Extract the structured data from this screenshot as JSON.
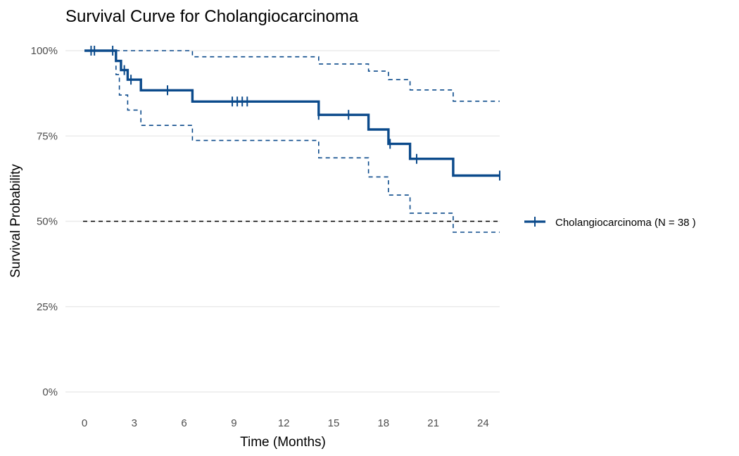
{
  "chart_data": {
    "type": "line",
    "title": "Survival Curve for Cholangiocarcinoma",
    "xlabel": "Time (Months)",
    "ylabel": "Survival Probability",
    "xlim": [
      0,
      25
    ],
    "ylim": [
      0,
      1
    ],
    "x_ticks": [
      0,
      3,
      6,
      9,
      12,
      15,
      18,
      21,
      24
    ],
    "x_tick_labels": [
      "0",
      "3",
      "6",
      "9",
      "12",
      "15",
      "18",
      "21",
      "24"
    ],
    "y_ticks": [
      0,
      0.25,
      0.5,
      0.75,
      1
    ],
    "y_tick_labels": [
      "0%",
      "25%",
      "50%",
      "75%",
      "100%"
    ],
    "grid": "horizontal",
    "legend_position": "right",
    "reference_line": {
      "y": 0.5,
      "style": "dashed",
      "color": "#000000"
    },
    "series": [
      {
        "name": "Cholangiocarcinoma (N = 38 )",
        "color": "#0b4a8b",
        "step_curve": [
          [
            0,
            1.0
          ],
          [
            1.9,
            0.97
          ],
          [
            2.2,
            0.943
          ],
          [
            2.6,
            0.915
          ],
          [
            3.4,
            0.884
          ],
          [
            6.5,
            0.851
          ],
          [
            14.1,
            0.812
          ],
          [
            17.1,
            0.769
          ],
          [
            18.3,
            0.727
          ],
          [
            19.6,
            0.683
          ],
          [
            22.2,
            0.634
          ],
          [
            25,
            0.634
          ]
        ],
        "censor_times": [
          0.4,
          0.6,
          1.7,
          2.4,
          2.8,
          5.0,
          8.9,
          9.2,
          9.5,
          9.8,
          14.1,
          15.9,
          18.4,
          20.0,
          25.0
        ],
        "ci_upper": [
          [
            0,
            1.0
          ],
          [
            6.5,
            0.982
          ],
          [
            14.1,
            0.961
          ],
          [
            17.1,
            0.94
          ],
          [
            18.3,
            0.915
          ],
          [
            19.6,
            0.885
          ],
          [
            22.2,
            0.852
          ],
          [
            25,
            0.852
          ]
        ],
        "ci_lower": [
          [
            0,
            1.0
          ],
          [
            1.9,
            0.93
          ],
          [
            2.1,
            0.87
          ],
          [
            2.6,
            0.826
          ],
          [
            3.4,
            0.781
          ],
          [
            6.5,
            0.737
          ],
          [
            14.1,
            0.686
          ],
          [
            17.1,
            0.63
          ],
          [
            18.3,
            0.577
          ],
          [
            19.6,
            0.524
          ],
          [
            22.2,
            0.468
          ],
          [
            25,
            0.468
          ]
        ]
      }
    ]
  }
}
